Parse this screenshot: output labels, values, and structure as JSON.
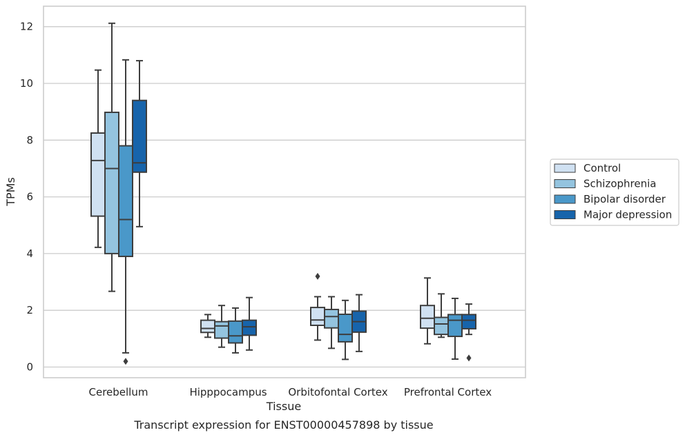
{
  "chart_data": {
    "type": "box",
    "title": "",
    "caption": "Transcript expression for ENST00000457898 by tissue",
    "xlabel": "Tissue",
    "ylabel": "TPMs",
    "ylim": [
      -0.35,
      12.7
    ],
    "yticks": [
      0,
      2,
      4,
      6,
      8,
      10,
      12
    ],
    "grid": "horizontal",
    "legend_position": "right",
    "categories": [
      "Cerebellum",
      "Hipppocampus",
      "Orbitofontal Cortex",
      "Prefrontal Cortex"
    ],
    "series": [
      {
        "name": "Control",
        "color": "#d0e1f2",
        "boxes": [
          {
            "whislo": 4.22,
            "q1": 5.32,
            "med": 7.28,
            "q3": 8.25,
            "whishi": 10.47,
            "fliers": []
          },
          {
            "whislo": 1.05,
            "q1": 1.22,
            "med": 1.36,
            "q3": 1.65,
            "whishi": 1.85,
            "fliers": []
          },
          {
            "whislo": 0.95,
            "q1": 1.47,
            "med": 1.66,
            "q3": 2.1,
            "whishi": 2.48,
            "fliers": [
              3.2
            ]
          },
          {
            "whislo": 0.82,
            "q1": 1.37,
            "med": 1.72,
            "q3": 2.17,
            "whishi": 3.14,
            "fliers": []
          }
        ]
      },
      {
        "name": "Schizophrenia",
        "color": "#94c4df",
        "boxes": [
          {
            "whislo": 2.67,
            "q1": 4.0,
            "med": 7.0,
            "q3": 8.98,
            "whishi": 12.12,
            "fliers": []
          },
          {
            "whislo": 0.7,
            "q1": 1.02,
            "med": 1.45,
            "q3": 1.6,
            "whishi": 2.17,
            "fliers": []
          },
          {
            "whislo": 0.66,
            "q1": 1.38,
            "med": 1.78,
            "q3": 2.03,
            "whishi": 2.48,
            "fliers": []
          },
          {
            "whislo": 1.05,
            "q1": 1.15,
            "med": 1.52,
            "q3": 1.75,
            "whishi": 2.58,
            "fliers": []
          }
        ]
      },
      {
        "name": "Bipolar disorder",
        "color": "#4a98c9",
        "boxes": [
          {
            "whislo": 0.5,
            "q1": 3.9,
            "med": 5.2,
            "q3": 7.8,
            "whishi": 10.83,
            "fliers": [
              0.2
            ]
          },
          {
            "whislo": 0.5,
            "q1": 0.85,
            "med": 1.1,
            "q3": 1.62,
            "whishi": 2.08,
            "fliers": []
          },
          {
            "whislo": 0.27,
            "q1": 0.89,
            "med": 1.15,
            "q3": 1.86,
            "whishi": 2.35,
            "fliers": []
          },
          {
            "whislo": 0.28,
            "q1": 1.08,
            "med": 1.65,
            "q3": 1.85,
            "whishi": 2.42,
            "fliers": []
          }
        ]
      },
      {
        "name": "Major depression",
        "color": "#1764ab",
        "boxes": [
          {
            "whislo": 4.95,
            "q1": 6.87,
            "med": 7.2,
            "q3": 9.4,
            "whishi": 10.8,
            "fliers": []
          },
          {
            "whislo": 0.6,
            "q1": 1.12,
            "med": 1.42,
            "q3": 1.65,
            "whishi": 2.45,
            "fliers": []
          },
          {
            "whislo": 0.55,
            "q1": 1.23,
            "med": 1.6,
            "q3": 1.97,
            "whishi": 2.55,
            "fliers": []
          },
          {
            "whislo": 1.15,
            "q1": 1.35,
            "med": 1.65,
            "q3": 1.85,
            "whishi": 2.22,
            "fliers": [
              0.32
            ]
          }
        ]
      }
    ]
  }
}
